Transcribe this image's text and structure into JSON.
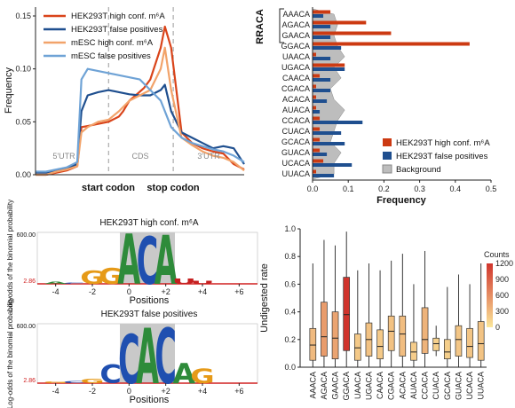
{
  "chart_data": [
    {
      "type": "line",
      "ylabel": "Frequency",
      "yticks": [
        "0.00",
        "0.05",
        "0.10",
        "0.15"
      ],
      "ylim": [
        0,
        0.15
      ],
      "xtick_labels": [
        "start codon",
        "stop codon"
      ],
      "region_labels": [
        "5'UTR",
        "CDS",
        "3'UTR"
      ],
      "series": [
        {
          "name": "HEK293T high conf. m⁶A",
          "color": "#d9441a",
          "x": [
            0,
            5,
            10,
            15,
            20,
            22,
            25,
            30,
            35,
            40,
            42,
            45,
            48,
            52,
            55,
            60,
            62,
            65,
            70,
            75,
            80,
            85,
            90,
            95,
            100
          ],
          "values": [
            0.0,
            0.0,
            0.002,
            0.004,
            0.008,
            0.045,
            0.046,
            0.048,
            0.05,
            0.055,
            0.06,
            0.07,
            0.075,
            0.082,
            0.09,
            0.12,
            0.14,
            0.12,
            0.04,
            0.03,
            0.025,
            0.022,
            0.02,
            0.01,
            0.005
          ]
        },
        {
          "name": "HEK293T false positives",
          "color": "#1f4f8f",
          "x": [
            0,
            5,
            10,
            15,
            20,
            22,
            25,
            30,
            35,
            40,
            45,
            50,
            55,
            60,
            62,
            65,
            70,
            75,
            80,
            85,
            90,
            95,
            100
          ],
          "values": [
            0.002,
            0.002,
            0.004,
            0.006,
            0.01,
            0.06,
            0.075,
            0.078,
            0.08,
            0.078,
            0.076,
            0.075,
            0.075,
            0.08,
            0.085,
            0.06,
            0.04,
            0.035,
            0.03,
            0.025,
            0.027,
            0.025,
            0.01
          ]
        },
        {
          "name": "mESC high conf. m⁶A",
          "color": "#f2a36a",
          "x": [
            0,
            5,
            10,
            15,
            20,
            22,
            25,
            30,
            35,
            40,
            45,
            50,
            55,
            60,
            62,
            65,
            70,
            75,
            80,
            85,
            90,
            95,
            100
          ],
          "values": [
            0.0,
            0.0,
            0.003,
            0.005,
            0.008,
            0.04,
            0.045,
            0.05,
            0.052,
            0.06,
            0.07,
            0.075,
            0.08,
            0.1,
            0.12,
            0.08,
            0.035,
            0.028,
            0.022,
            0.018,
            0.016,
            0.012,
            0.004
          ]
        },
        {
          "name": "mESC false positives",
          "color": "#6fa3d6",
          "x": [
            0,
            5,
            10,
            15,
            20,
            22,
            25,
            30,
            35,
            40,
            45,
            50,
            55,
            60,
            62,
            65,
            70,
            75,
            80,
            85,
            90,
            95,
            100
          ],
          "values": [
            0.003,
            0.003,
            0.005,
            0.007,
            0.012,
            0.09,
            0.1,
            0.098,
            0.096,
            0.094,
            0.092,
            0.09,
            0.08,
            0.07,
            0.06,
            0.045,
            0.035,
            0.03,
            0.027,
            0.024,
            0.022,
            0.018,
            0.012
          ]
        }
      ]
    },
    {
      "type": "bar",
      "orientation": "horizontal",
      "title": "RRACA",
      "xlabel": "Frequency",
      "xticks": [
        "0.0",
        "0.1",
        "0.2",
        "0.3",
        "0.4",
        "0.5"
      ],
      "xlim": [
        0,
        0.5
      ],
      "categories": [
        "AAACA",
        "AGACA",
        "GAACA",
        "GGACA",
        "UAACA",
        "UGACA",
        "CAACA",
        "CGACA",
        "ACACA",
        "AUACA",
        "CCACA",
        "CUACA",
        "GCACA",
        "GUACA",
        "UCACA",
        "UUACA"
      ],
      "series": [
        {
          "name": "HEK293T high conf. m⁶A",
          "color": "#cc3a12",
          "values": [
            0.05,
            0.15,
            0.22,
            0.44,
            0.01,
            0.09,
            0.02,
            0.01,
            0.01,
            0.01,
            0.02,
            0.02,
            0.02,
            0.02,
            0.03,
            0.01
          ]
        },
        {
          "name": "HEK293T false positives",
          "color": "#1f4f8f",
          "values": [
            0.03,
            0.05,
            0.05,
            0.08,
            0.05,
            0.09,
            0.05,
            0.05,
            0.04,
            0.02,
            0.14,
            0.08,
            0.09,
            0.04,
            0.11,
            0.06
          ]
        },
        {
          "name": "Background",
          "color": "#bdbdbd",
          "values": [
            0.06,
            0.07,
            0.06,
            0.07,
            0.09,
            0.06,
            0.08,
            0.05,
            0.06,
            0.09,
            0.07,
            0.06,
            0.05,
            0.08,
            0.06,
            0.06
          ]
        }
      ],
      "bracket_labels": [
        "AAACA",
        "AGACA",
        "GAACA",
        "GGACA"
      ]
    },
    {
      "type": "sequence_logo",
      "title": "HEK293T high conf. m⁶A",
      "ylabel": "Log-odds of the binomial probability",
      "ymax_label": "600.00",
      "ymin_label": "2.86",
      "xlabel": "Positions",
      "xticks": [
        "-4",
        "-2",
        "0",
        "+2",
        "+4",
        "+6"
      ],
      "letters": [
        {
          "pos": -4,
          "stack": [
            [
              "A",
              0.04
            ]
          ]
        },
        {
          "pos": -3,
          "stack": [
            [
              "C",
              0.02
            ]
          ]
        },
        {
          "pos": -2,
          "stack": [
            [
              "G",
              0.26
            ]
          ]
        },
        {
          "pos": -1,
          "stack": [
            [
              "G",
              0.32
            ]
          ]
        },
        {
          "pos": 0,
          "stack": [
            [
              "A",
              1.0
            ]
          ]
        },
        {
          "pos": 1,
          "stack": [
            [
              "C",
              0.95
            ]
          ]
        },
        {
          "pos": 2,
          "stack": [
            [
              "A",
              0.98
            ]
          ]
        },
        {
          "pos": 3,
          "stack": [
            [
              "U",
              0.1
            ]
          ]
        },
        {
          "pos": 4,
          "stack": [
            [
              "U",
              0.06
            ]
          ]
        }
      ]
    },
    {
      "type": "sequence_logo",
      "title": "HEK293T false positives",
      "ylabel": "Log-odds of the binomial probability",
      "ymax_label": "600.00",
      "ymin_label": "2.86",
      "xlabel": "Positions",
      "xticks": [
        "-4",
        "-2",
        "0",
        "+2",
        "+4",
        "+6"
      ],
      "letters": [
        {
          "pos": -4,
          "stack": [
            [
              "G",
              0.03
            ]
          ]
        },
        {
          "pos": -3,
          "stack": [
            [
              "C",
              0.04
            ]
          ]
        },
        {
          "pos": -2,
          "stack": [
            [
              "G",
              0.08
            ]
          ]
        },
        {
          "pos": -1,
          "stack": [
            [
              "C",
              0.32
            ]
          ]
        },
        {
          "pos": 0,
          "stack": [
            [
              "C",
              0.85
            ]
          ]
        },
        {
          "pos": 1,
          "stack": [
            [
              "A",
              0.95
            ]
          ]
        },
        {
          "pos": 2,
          "stack": [
            [
              "C",
              0.95
            ]
          ]
        },
        {
          "pos": 3,
          "stack": [
            [
              "A",
              0.35
            ]
          ]
        },
        {
          "pos": 4,
          "stack": [
            [
              "G",
              0.25
            ]
          ]
        }
      ]
    },
    {
      "type": "box",
      "ylabel": "Undigested rate",
      "ylim": [
        0,
        1
      ],
      "yticks": [
        "0.0",
        "0.2",
        "0.4",
        "0.6",
        "0.8",
        "1.0"
      ],
      "categories": [
        "AAACA",
        "AGACA",
        "GAACA",
        "GGACA",
        "UAACA",
        "UGACA",
        "CAACA",
        "CGACA",
        "ACACA",
        "AUACA",
        "CCACA",
        "CUACA",
        "GCACA",
        "GUACA",
        "UCACA",
        "UUACA"
      ],
      "boxes": [
        {
          "min": 0.0,
          "q1": 0.05,
          "median": 0.16,
          "q3": 0.28,
          "max": 0.75,
          "count": 300
        },
        {
          "min": 0.0,
          "q1": 0.08,
          "median": 0.22,
          "q3": 0.47,
          "max": 0.92,
          "count": 500
        },
        {
          "min": 0.0,
          "q1": 0.06,
          "median": 0.21,
          "q3": 0.4,
          "max": 0.88,
          "count": 450
        },
        {
          "min": 0.0,
          "q1": 0.12,
          "median": 0.38,
          "q3": 0.65,
          "max": 0.98,
          "count": 1200
        },
        {
          "min": 0.0,
          "q1": 0.05,
          "median": 0.14,
          "q3": 0.24,
          "max": 0.7,
          "count": 200
        },
        {
          "min": 0.0,
          "q1": 0.08,
          "median": 0.2,
          "q3": 0.32,
          "max": 0.75,
          "count": 250
        },
        {
          "min": 0.0,
          "q1": 0.06,
          "median": 0.15,
          "q3": 0.27,
          "max": 0.7,
          "count": 200
        },
        {
          "min": 0.0,
          "q1": 0.12,
          "median": 0.26,
          "q3": 0.37,
          "max": 0.77,
          "count": 250
        },
        {
          "min": 0.0,
          "q1": 0.08,
          "median": 0.24,
          "q3": 0.37,
          "max": 0.82,
          "count": 280
        },
        {
          "min": 0.0,
          "q1": 0.05,
          "median": 0.11,
          "q3": 0.18,
          "max": 0.6,
          "count": 180
        },
        {
          "min": 0.0,
          "q1": 0.1,
          "median": 0.2,
          "q3": 0.43,
          "max": 0.84,
          "count": 350
        },
        {
          "min": 0.08,
          "q1": 0.12,
          "median": 0.17,
          "q3": 0.21,
          "max": 0.3,
          "count": 150
        },
        {
          "min": 0.0,
          "q1": 0.06,
          "median": 0.11,
          "q3": 0.2,
          "max": 0.58,
          "count": 160
        },
        {
          "min": 0.0,
          "q1": 0.08,
          "median": 0.2,
          "q3": 0.3,
          "max": 0.67,
          "count": 220
        },
        {
          "min": 0.0,
          "q1": 0.07,
          "median": 0.15,
          "q3": 0.28,
          "max": 0.6,
          "count": 230
        },
        {
          "min": 0.0,
          "q1": 0.05,
          "median": 0.17,
          "q3": 0.33,
          "max": 0.75,
          "count": 240
        }
      ],
      "colorbar": {
        "title": "Counts",
        "ticks": [
          "1200",
          "900",
          "600",
          "300",
          "0"
        ],
        "min": 0,
        "max": 1200,
        "low_color": "#fbe79a",
        "high_color": "#d0342c"
      }
    }
  ]
}
